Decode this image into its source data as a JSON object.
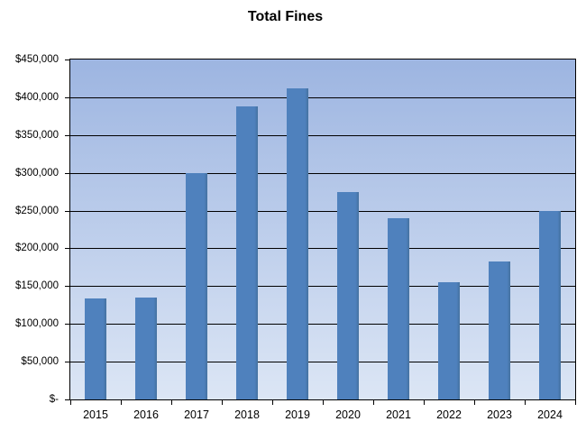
{
  "chart_data": {
    "type": "bar",
    "title": "Total Fines",
    "categories": [
      "2015",
      "2016",
      "2017",
      "2018",
      "2019",
      "2020",
      "2021",
      "2022",
      "2023",
      "2024"
    ],
    "values": [
      134000,
      135000,
      300000,
      388000,
      412000,
      275000,
      240000,
      155000,
      183000,
      250000
    ],
    "series_name": "Total Fines",
    "xlabel": "",
    "ylabel": "",
    "ylim": [
      0,
      450000
    ],
    "ytick_interval": 50000,
    "ytick_values": [
      0,
      50000,
      100000,
      150000,
      200000,
      250000,
      300000,
      350000,
      400000,
      450000
    ],
    "ytick_labels": [
      "$-",
      "$50,000",
      "$100,000",
      "$150,000",
      "$200,000",
      "$250,000",
      "$300,000",
      "$350,000",
      "$400,000",
      "$450,000"
    ],
    "grid": "horizontal",
    "legend": "none",
    "colors": {
      "bar": "#4F81BD",
      "bar_edge": "#44719F",
      "plot_bg_top": "#9DB5E1",
      "plot_bg_bottom": "#DCE6F5",
      "gridline": "#000000",
      "axis": "#000000",
      "text": "#000000",
      "background": "#FFFFFF"
    }
  }
}
